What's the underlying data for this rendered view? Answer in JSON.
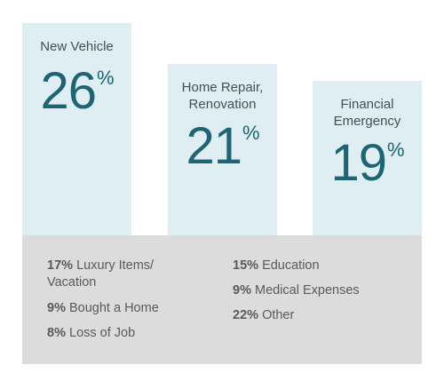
{
  "chart_data": {
    "type": "bar",
    "ylabel": "",
    "xlabel": "",
    "ylim": [
      0,
      30
    ],
    "categories": [
      "New Vehicle",
      "Home Repair, Renovation",
      "Financial Emergency"
    ],
    "category_lines": [
      [
        "New Vehicle"
      ],
      [
        "Home Repair,",
        "Renovation"
      ],
      [
        "Financial",
        "Emergency"
      ]
    ],
    "values": [
      26,
      21,
      19
    ],
    "value_suffix": "%",
    "others": [
      {
        "value": "17%",
        "label": "Luxury Items/",
        "label2": "Vacation"
      },
      {
        "value": "9%",
        "label": "Bought a Home"
      },
      {
        "value": "8%",
        "label": "Loss of Job"
      },
      {
        "value": "15%",
        "label": "Education"
      },
      {
        "value": "9%",
        "label": "Medical Expenses"
      },
      {
        "value": "22%",
        "label": "Other"
      }
    ]
  },
  "colors": {
    "bar_fill": "#dfeef3",
    "value_text": "#1e6472",
    "label_text": "#3f5257",
    "others_panel": "#dcdcdc",
    "others_text": "#5a5a5a"
  }
}
